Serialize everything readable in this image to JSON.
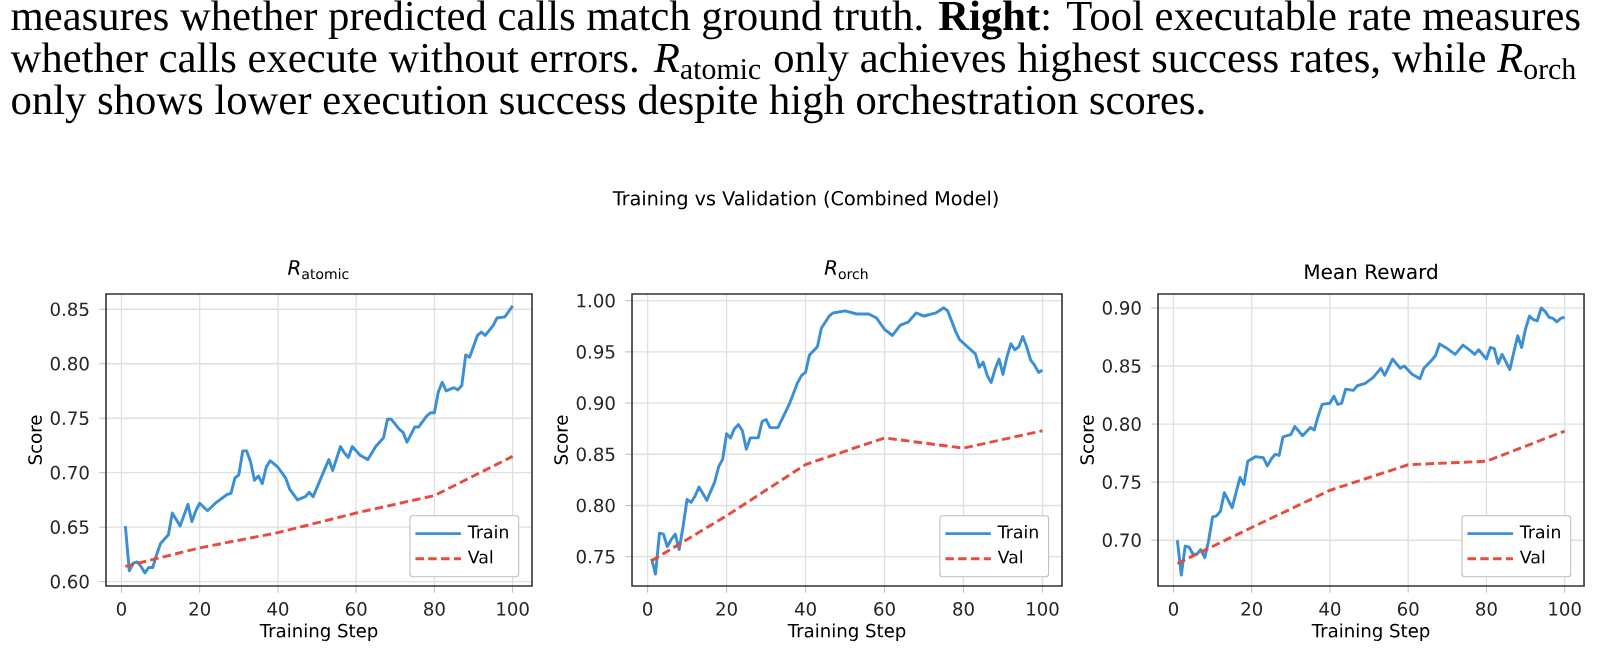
{
  "chart_data": [
    {
      "type": "line",
      "title": "*R*$_{atomic}$",
      "xlabel": "Training Step",
      "ylabel": "Score",
      "annotations": [
        "measures whether predicted calls match ground truth. **Right**: Tool executable rate measures",
        "whether calls execute without errors. *R*$_{atomic}$ only achieves highest success rates, while *R*$_{orch}$",
        "only shows lower execution success despite high orchestration scores.",
        "Training vs Validation (Combined Model)"
      ],
      "xlim": [
        -3.95,
        104.95
      ],
      "ylim": [
        0.596,
        0.864
      ],
      "xticks": [
        0,
        20,
        40,
        60,
        80,
        100
      ],
      "yticks": [
        {
          "value": 0.6,
          "label": "0.60"
        },
        {
          "value": 0.65,
          "label": "0.65"
        },
        {
          "value": 0.7,
          "label": "0.70"
        },
        {
          "value": 0.75,
          "label": "0.75"
        },
        {
          "value": 0.8,
          "label": "0.80"
        },
        {
          "value": 0.85,
          "label": "0.85"
        }
      ],
      "grid": true,
      "legend": "bottom right",
      "series": [
        {
          "name": "Train",
          "color": "#3a8fd6",
          "line_style": "solid",
          "x": [
            1,
            2,
            3,
            4,
            5,
            6,
            7,
            8,
            9,
            10,
            12,
            13,
            14,
            15,
            17,
            18,
            19,
            20,
            22,
            24,
            27,
            28,
            29,
            30,
            31,
            32,
            33,
            34,
            35,
            36,
            37,
            38,
            40,
            42,
            43,
            45,
            47,
            48,
            49,
            51,
            53,
            54,
            56,
            57,
            58,
            59,
            60,
            61,
            63,
            65,
            67,
            68,
            69,
            71,
            72,
            73,
            75,
            76,
            78,
            79,
            80,
            81,
            82,
            83,
            85,
            86,
            87,
            88,
            89,
            91,
            92,
            93,
            95,
            96,
            98,
            100
          ],
          "values": [
            0.651,
            0.61,
            0.617,
            0.618,
            0.614,
            0.608,
            0.613,
            0.613,
            0.625,
            0.635,
            0.643,
            0.663,
            0.657,
            0.651,
            0.671,
            0.655,
            0.665,
            0.672,
            0.665,
            0.672,
            0.68,
            0.681,
            0.695,
            0.698,
            0.72,
            0.72,
            0.71,
            0.693,
            0.697,
            0.69,
            0.705,
            0.711,
            0.705,
            0.695,
            0.685,
            0.675,
            0.678,
            0.682,
            0.678,
            0.695,
            0.712,
            0.702,
            0.724,
            0.718,
            0.714,
            0.724,
            0.72,
            0.716,
            0.712,
            0.724,
            0.732,
            0.749,
            0.749,
            0.74,
            0.737,
            0.728,
            0.742,
            0.742,
            0.752,
            0.755,
            0.755,
            0.774,
            0.783,
            0.775,
            0.778,
            0.776,
            0.78,
            0.808,
            0.806,
            0.826,
            0.829,
            0.826,
            0.835,
            0.842,
            0.843,
            0.853
          ]
        },
        {
          "name": "Val",
          "color": "#e74c3c",
          "line_style": "dashed",
          "x": [
            1,
            20,
            40,
            60,
            80,
            100
          ],
          "values": [
            0.614,
            0.631,
            0.645,
            0.663,
            0.679,
            0.715
          ]
        }
      ]
    },
    {
      "type": "line",
      "title": "*R*$_{orch}$",
      "xlabel": "Training Step",
      "ylabel": "Score",
      "xlim": [
        -3.95,
        104.95
      ],
      "ylim": [
        0.7214,
        1.0065
      ],
      "xticks": [
        0,
        20,
        40,
        60,
        80,
        100
      ],
      "yticks": [
        {
          "value": 0.75,
          "label": "0.75"
        },
        {
          "value": 0.8,
          "label": "0.80"
        },
        {
          "value": 0.85,
          "label": "0.85"
        },
        {
          "value": 0.9,
          "label": "0.90"
        },
        {
          "value": 0.95,
          "label": "0.95"
        },
        {
          "value": 1.0,
          "label": "1.00"
        }
      ],
      "grid": true,
      "legend": "bottom right",
      "series": [
        {
          "name": "Train",
          "color": "#3a8fd6",
          "line_style": "solid",
          "x": [
            1,
            2,
            3,
            4,
            5,
            6,
            7,
            8,
            9,
            10,
            11,
            12,
            13,
            15,
            17,
            18,
            19,
            20,
            21,
            22,
            23,
            24,
            25,
            26,
            28,
            29,
            30,
            31,
            33,
            35,
            36,
            38,
            39,
            40,
            41,
            43,
            44,
            46,
            47,
            50,
            53,
            56,
            58,
            60,
            62,
            64,
            66,
            68,
            70,
            73,
            75,
            76,
            78,
            79,
            81,
            83,
            84,
            85,
            86,
            87,
            88,
            89,
            90,
            91,
            92,
            93,
            94,
            95,
            96,
            97,
            98,
            99,
            100
          ],
          "values": [
            0.748,
            0.733,
            0.773,
            0.772,
            0.76,
            0.767,
            0.772,
            0.757,
            0.78,
            0.806,
            0.803,
            0.809,
            0.818,
            0.805,
            0.823,
            0.838,
            0.845,
            0.87,
            0.866,
            0.875,
            0.879,
            0.873,
            0.855,
            0.866,
            0.866,
            0.882,
            0.884,
            0.876,
            0.876,
            0.892,
            0.9,
            0.92,
            0.927,
            0.93,
            0.947,
            0.955,
            0.973,
            0.985,
            0.988,
            0.99,
            0.987,
            0.987,
            0.983,
            0.972,
            0.966,
            0.976,
            0.979,
            0.988,
            0.985,
            0.988,
            0.993,
            0.99,
            0.97,
            0.962,
            0.955,
            0.948,
            0.935,
            0.94,
            0.927,
            0.92,
            0.933,
            0.943,
            0.928,
            0.945,
            0.958,
            0.952,
            0.955,
            0.965,
            0.955,
            0.942,
            0.937,
            0.93,
            0.932
          ]
        },
        {
          "name": "Val",
          "color": "#e74c3c",
          "line_style": "dashed",
          "x": [
            1,
            20,
            40,
            60,
            80,
            100
          ],
          "values": [
            0.746,
            0.79,
            0.84,
            0.866,
            0.856,
            0.873
          ]
        }
      ]
    },
    {
      "type": "line",
      "title": "Mean Reward",
      "xlabel": "Training Step",
      "ylabel": "Score",
      "xlim": [
        -3.95,
        104.95
      ],
      "ylim": [
        0.6606,
        0.912
      ],
      "xticks": [
        0,
        20,
        40,
        60,
        80,
        100
      ],
      "yticks": [
        {
          "value": 0.7,
          "label": "0.70"
        },
        {
          "value": 0.75,
          "label": "0.75"
        },
        {
          "value": 0.8,
          "label": "0.80"
        },
        {
          "value": 0.85,
          "label": "0.85"
        },
        {
          "value": 0.9,
          "label": "0.90"
        }
      ],
      "grid": true,
      "legend": "bottom right",
      "series": [
        {
          "name": "Train",
          "color": "#3a8fd6",
          "line_style": "solid",
          "x": [
            1,
            2,
            3,
            4,
            5,
            6,
            7,
            8,
            9,
            10,
            11,
            12,
            13,
            15,
            17,
            18,
            19,
            21,
            23,
            24,
            25,
            26,
            27,
            28,
            30,
            31,
            33,
            35,
            36,
            37,
            38,
            40,
            41,
            42,
            43,
            44,
            46,
            47,
            49,
            51,
            53,
            54,
            56,
            58,
            59,
            61,
            63,
            64,
            66,
            67,
            68,
            70,
            72,
            74,
            76,
            77,
            78,
            80,
            81,
            82,
            83,
            84,
            86,
            87,
            88,
            89,
            90,
            91,
            92,
            93,
            94,
            95,
            96,
            97,
            98,
            99,
            100
          ],
          "values": [
            0.7,
            0.67,
            0.695,
            0.694,
            0.688,
            0.688,
            0.692,
            0.685,
            0.7,
            0.72,
            0.721,
            0.725,
            0.741,
            0.728,
            0.754,
            0.748,
            0.768,
            0.772,
            0.771,
            0.764,
            0.77,
            0.774,
            0.773,
            0.789,
            0.791,
            0.798,
            0.79,
            0.797,
            0.795,
            0.807,
            0.817,
            0.818,
            0.824,
            0.817,
            0.818,
            0.83,
            0.829,
            0.833,
            0.835,
            0.84,
            0.848,
            0.842,
            0.856,
            0.848,
            0.85,
            0.843,
            0.839,
            0.848,
            0.855,
            0.859,
            0.869,
            0.865,
            0.86,
            0.868,
            0.863,
            0.86,
            0.864,
            0.856,
            0.866,
            0.865,
            0.852,
            0.86,
            0.847,
            0.862,
            0.876,
            0.866,
            0.882,
            0.893,
            0.89,
            0.889,
            0.9,
            0.897,
            0.892,
            0.891,
            0.888,
            0.891,
            0.892
          ]
        },
        {
          "name": "Val",
          "color": "#e74c3c",
          "line_style": "dashed",
          "x": [
            1,
            20,
            40,
            60,
            80,
            100
          ],
          "values": [
            0.68,
            0.711,
            0.743,
            0.765,
            0.768,
            0.794
          ]
        }
      ]
    }
  ]
}
